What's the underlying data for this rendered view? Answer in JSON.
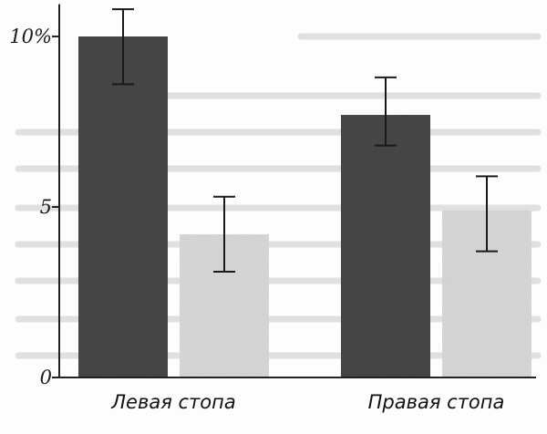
{
  "chart_data": {
    "type": "bar",
    "categories": [
      "Левая стопа",
      "Правая стопа"
    ],
    "series": [
      {
        "values": [
          10.0,
          7.7
        ],
        "errors": [
          [
            8.6,
            10.8
          ],
          [
            6.8,
            8.8
          ]
        ],
        "color": "#4a4a4a"
      },
      {
        "values": [
          4.2,
          4.9
        ],
        "errors": [
          [
            3.1,
            5.3
          ],
          [
            3.7,
            5.9
          ]
        ],
        "color": "#dcdcdc"
      }
    ],
    "yticks": [
      {
        "value": 0,
        "label": "0"
      },
      {
        "value": 5,
        "label": "5"
      },
      {
        "value": 10,
        "label": "10%"
      }
    ],
    "ylim": [
      0,
      11
    ],
    "grid": false,
    "title": "",
    "xlabel": "",
    "ylabel": ""
  }
}
